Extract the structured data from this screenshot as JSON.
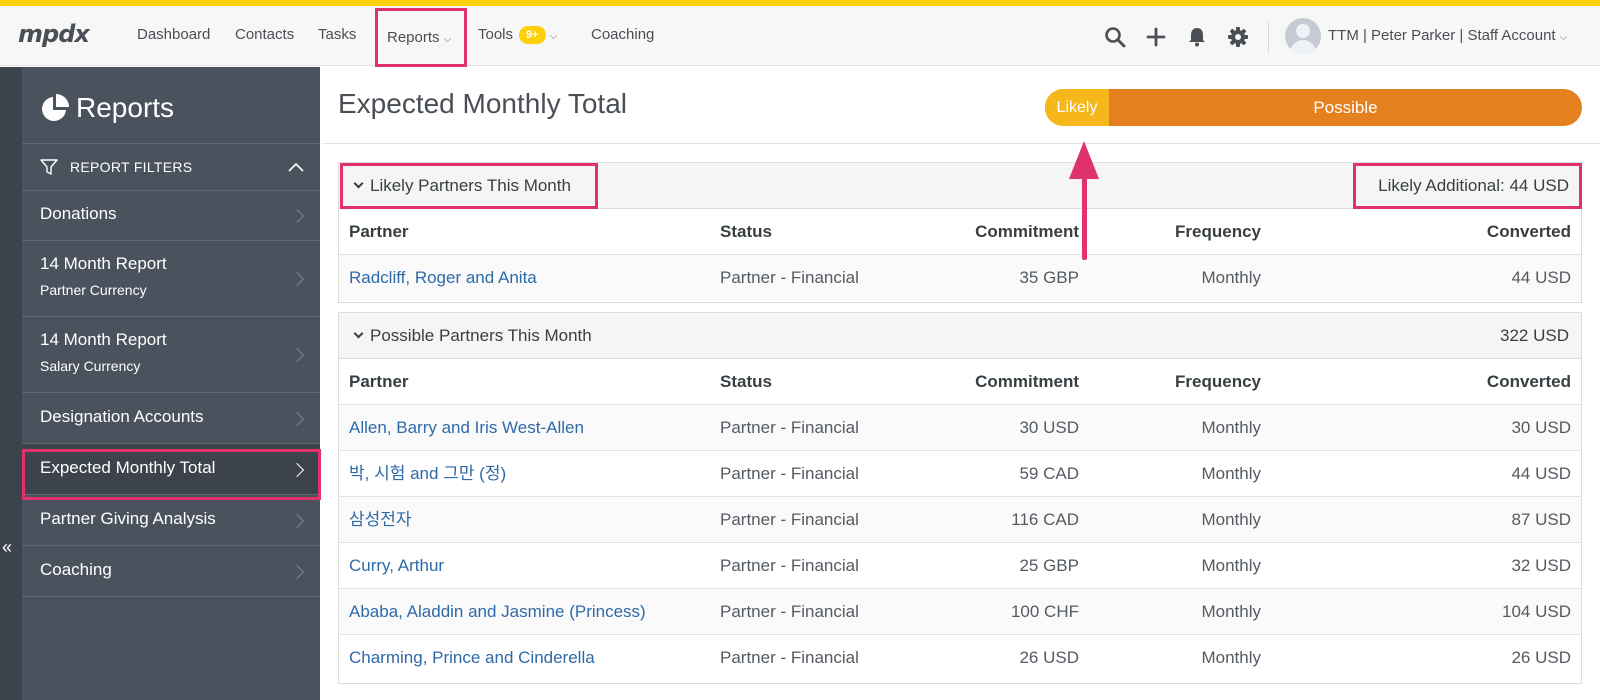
{
  "header": {
    "logo": "mpdx",
    "nav": [
      {
        "label": "Dashboard"
      },
      {
        "label": "Contacts"
      },
      {
        "label": "Tasks"
      },
      {
        "label": "Reports"
      },
      {
        "label": "Tools",
        "badge": "9+"
      },
      {
        "label": "Coaching"
      }
    ],
    "icons": [
      "search-icon",
      "plus-icon",
      "bell-icon",
      "gear-icon"
    ],
    "account_label": "TTM | Peter Parker | Staff Account"
  },
  "sidebar": {
    "title": "Reports",
    "filters_label": "REPORT FILTERS",
    "items": [
      {
        "label": "Donations",
        "sub": ""
      },
      {
        "label": "14 Month Report",
        "sub": "Partner Currency"
      },
      {
        "label": "14 Month Report",
        "sub": "Salary Currency"
      },
      {
        "label": "Designation Accounts",
        "sub": ""
      },
      {
        "label": "Expected Monthly Total",
        "sub": "",
        "active": true
      },
      {
        "label": "Partner Giving Analysis",
        "sub": ""
      },
      {
        "label": "Coaching",
        "sub": ""
      }
    ]
  },
  "main": {
    "title": "Expected Monthly Total",
    "progress": {
      "likely_label": "Likely",
      "possible_label": "Possible",
      "likely_fraction": 0.12
    },
    "columns": [
      "Partner",
      "Status",
      "Commitment",
      "Frequency",
      "Converted"
    ],
    "likely": {
      "title": "Likely Partners This Month",
      "total": "Likely Additional: 44 USD",
      "rows": [
        {
          "partner": "Radcliff, Roger and Anita",
          "status": "Partner - Financial",
          "commitment": "35 GBP",
          "frequency": "Monthly",
          "converted": "44 USD"
        }
      ]
    },
    "possible": {
      "title": "Possible Partners This Month",
      "total": "322 USD",
      "rows": [
        {
          "partner": "Allen, Barry and Iris West-Allen",
          "status": "Partner - Financial",
          "commitment": "30 USD",
          "frequency": "Monthly",
          "converted": "30 USD"
        },
        {
          "partner": "박, 시험 and 그만 (정)",
          "status": "Partner - Financial",
          "commitment": "59 CAD",
          "frequency": "Monthly",
          "converted": "44 USD"
        },
        {
          "partner": "삼성전자",
          "status": "Partner - Financial",
          "commitment": "116 CAD",
          "frequency": "Monthly",
          "converted": "87 USD"
        },
        {
          "partner": "Curry, Arthur",
          "status": "Partner - Financial",
          "commitment": "25 GBP",
          "frequency": "Monthly",
          "converted": "32 USD"
        },
        {
          "partner": "Ababa, Aladdin and Jasmine (Princess)",
          "status": "Partner - Financial",
          "commitment": "100 CHF",
          "frequency": "Monthly",
          "converted": "104 USD"
        },
        {
          "partner": "Charming, Prince and Cinderella",
          "status": "Partner - Financial",
          "commitment": "26 USD",
          "frequency": "Monthly",
          "converted": "26 USD"
        }
      ]
    }
  },
  "colors": {
    "accent": "#ffcf07",
    "highlight": "#e0336b",
    "sidebar": "#4a525e",
    "link": "#2f6aa8",
    "likely": "#f5b71a",
    "possible": "#e5801f"
  }
}
